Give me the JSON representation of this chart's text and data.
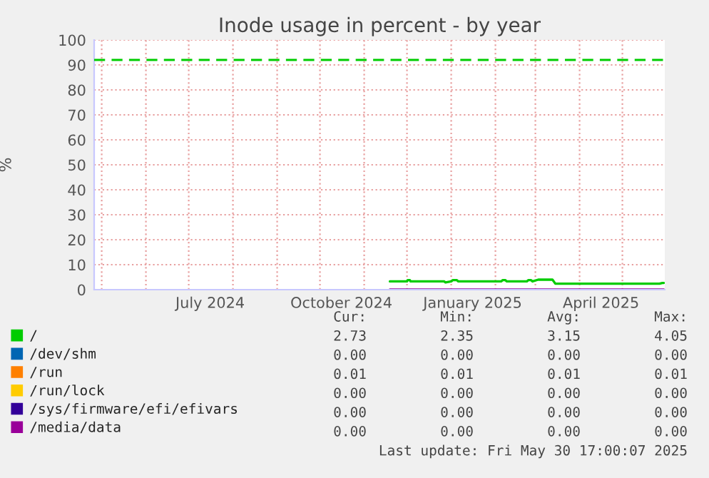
{
  "chart_data": {
    "type": "line",
    "title": "Inode usage in percent - by year",
    "ylabel": "%",
    "xlim": [
      "2024-04-25T17:00",
      "2025-05-30T17:00"
    ],
    "xticks": [
      {
        "value": "2024-07-16",
        "label": "July 2024"
      },
      {
        "value": "2024-10-16",
        "label": "October 2024"
      },
      {
        "value": "2025-01-16",
        "label": "January 2025"
      },
      {
        "value": "2025-04-16",
        "label": "April 2025"
      }
    ],
    "ylim": [
      0,
      100
    ],
    "yticks": [
      0,
      10,
      20,
      30,
      40,
      50,
      60,
      70,
      80,
      90,
      100
    ],
    "grid": true,
    "legend": "bottom left",
    "marker": "none",
    "line_style": "solid",
    "ref_lines": [
      {
        "axis": "y",
        "value": 92,
        "color": "#00cc00",
        "line_style": "dashed"
      }
    ],
    "series": [
      {
        "name": "/",
        "color": "#00cc00",
        "x": [
          "2024-11-19",
          "2024-12-01",
          "2024-12-01T12:00",
          "2024-12-03",
          "2024-12-03T12:00",
          "2024-12-27",
          "2024-12-28",
          "2025-01-01",
          "2025-01-02",
          "2025-01-05",
          "2025-01-06",
          "2025-02-05",
          "2025-02-06",
          "2025-02-08",
          "2025-02-09",
          "2025-02-23",
          "2025-02-24",
          "2025-02-26",
          "2025-02-27",
          "2025-03-03",
          "2025-03-13",
          "2025-03-15",
          "2025-05-27",
          "2025-05-29",
          "2025-05-30"
        ],
        "values": [
          3.3,
          3.3,
          3.8,
          3.8,
          3.3,
          3.3,
          2.9,
          3.3,
          3.8,
          3.8,
          3.3,
          3.3,
          3.8,
          3.8,
          3.3,
          3.3,
          3.8,
          3.8,
          3.3,
          4.0,
          4.0,
          2.4,
          2.4,
          2.7,
          2.7
        ]
      },
      {
        "name": "/dev/shm",
        "color": "#0066b3"
      },
      {
        "name": "/run",
        "color": "#ff8000"
      },
      {
        "name": "/run/lock",
        "color": "#ffcc00"
      },
      {
        "name": "/sys/firmware/efi/efivars",
        "color": "#330099"
      },
      {
        "name": "/media/data",
        "color": "#990099",
        "x": [
          "2024-11-19",
          "2025-05-30"
        ],
        "values": [
          0,
          0
        ]
      }
    ],
    "annotations": [
      "Cur:",
      "Min:",
      "Avg:",
      "Max:",
      "2.73",
      "2.35",
      "3.15",
      "4.05",
      "0.00",
      "0.00",
      "0.00",
      "0.00",
      "0.01",
      "0.01",
      "0.01",
      "0.01",
      "0.00",
      "0.00",
      "0.00",
      "0.00",
      "0.00",
      "0.00",
      "0.00",
      "0.00",
      "0.00",
      "0.00",
      "0.00",
      "0.00",
      "Last update: Fri May 30 17:00:07 2025"
    ]
  }
}
